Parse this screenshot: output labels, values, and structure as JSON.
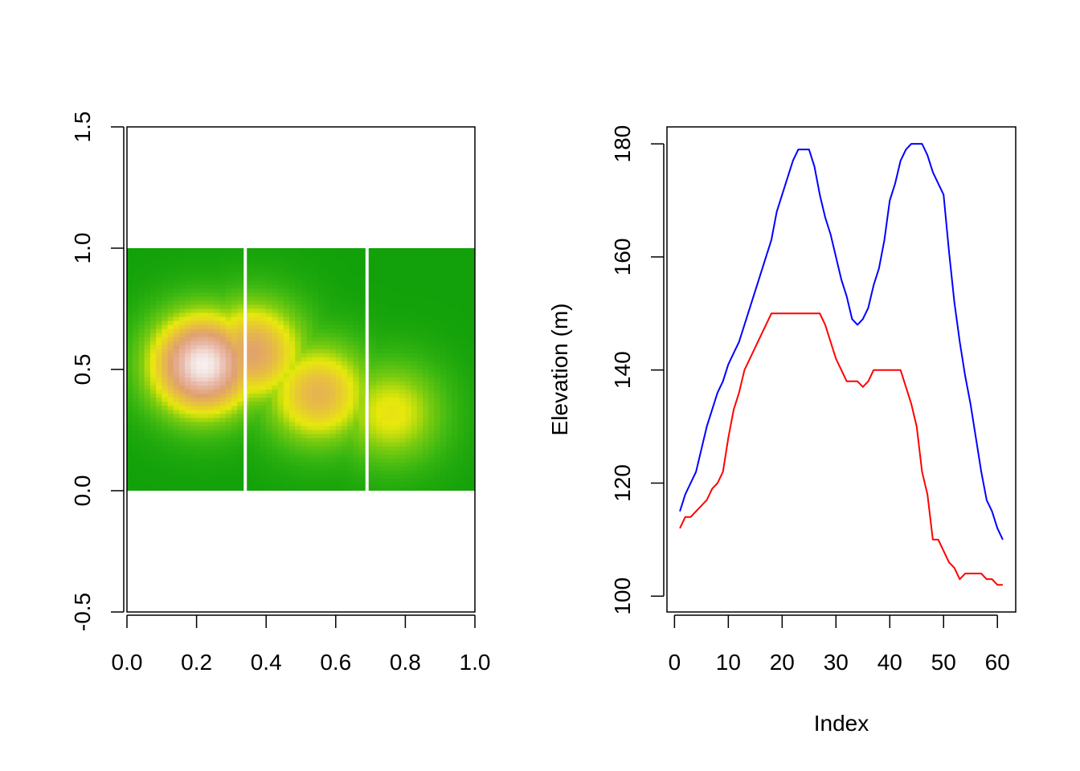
{
  "chart_data": [
    {
      "type": "heatmap",
      "title": "",
      "xlabel": "",
      "ylabel": "",
      "xlim": [
        0.0,
        1.0
      ],
      "ylim": [
        -0.5,
        1.5
      ],
      "x_ticks": [
        "0.0",
        "0.2",
        "0.4",
        "0.6",
        "0.8",
        "1.0"
      ],
      "y_ticks": [
        "-0.5",
        "0.0",
        "0.5",
        "1.0",
        "1.5"
      ],
      "grid": false,
      "raster_extent": {
        "x": [
          0.0,
          1.0
        ],
        "y": [
          0.0,
          1.0
        ]
      },
      "colormap": "terrain (green - yellow - tan - white)",
      "colors": [
        "#12a10a",
        "#3cb812",
        "#7ccc10",
        "#e8e80c",
        "#e8c040",
        "#e0a070",
        "#e8b8a8",
        "#f6f0f0"
      ],
      "peaks": [
        {
          "x": 0.22,
          "y": 0.52,
          "level": 1.0
        },
        {
          "x": 0.36,
          "y": 0.57,
          "level": 0.7
        },
        {
          "x": 0.55,
          "y": 0.4,
          "level": 0.62
        },
        {
          "x": 0.76,
          "y": 0.32,
          "level": 0.45
        }
      ],
      "transect_lines": [
        {
          "x": 0.34,
          "color": "#ffffff"
        },
        {
          "x": 0.69,
          "color": "#ffffff"
        }
      ]
    },
    {
      "type": "line",
      "title": "",
      "xlabel": "Index",
      "ylabel": "Elevation (m)",
      "xlim": [
        1,
        61
      ],
      "ylim": [
        100,
        180
      ],
      "x_ticks": [
        "0",
        "10",
        "20",
        "30",
        "40",
        "50",
        "60"
      ],
      "y_ticks": [
        "100",
        "120",
        "140",
        "160",
        "180"
      ],
      "grid": false,
      "x": [
        1,
        2,
        3,
        4,
        5,
        6,
        7,
        8,
        9,
        10,
        11,
        12,
        13,
        14,
        15,
        16,
        17,
        18,
        19,
        20,
        21,
        22,
        23,
        24,
        25,
        26,
        27,
        28,
        29,
        30,
        31,
        32,
        33,
        34,
        35,
        36,
        37,
        38,
        39,
        40,
        41,
        42,
        43,
        44,
        45,
        46,
        47,
        48,
        49,
        50,
        51,
        52,
        53,
        54,
        55,
        56,
        57,
        58,
        59,
        60,
        61
      ],
      "series": [
        {
          "color": "#0000ff",
          "values": [
            115,
            118,
            120,
            122,
            126,
            130,
            133,
            136,
            138,
            141,
            143,
            145,
            148,
            151,
            154,
            157,
            160,
            163,
            168,
            171,
            174,
            177,
            179,
            179,
            179,
            176,
            171,
            167,
            164,
            160,
            156,
            153,
            149,
            148,
            149,
            151,
            155,
            158,
            163,
            170,
            173,
            177,
            179,
            180,
            180,
            180,
            178,
            175,
            173,
            171,
            161,
            152,
            145,
            139,
            134,
            128,
            122,
            117,
            115,
            112,
            110
          ]
        },
        {
          "color": "#ff0000",
          "values": [
            112,
            114,
            114,
            115,
            116,
            117,
            119,
            120,
            122,
            128,
            133,
            136,
            140,
            142,
            144,
            146,
            148,
            150,
            150,
            150,
            150,
            150,
            150,
            150,
            150,
            150,
            150,
            148,
            145,
            142,
            140,
            138,
            138,
            138,
            137,
            138,
            140,
            140,
            140,
            140,
            140,
            140,
            137,
            134,
            130,
            122,
            118,
            110,
            110,
            108,
            106,
            105,
            103,
            104,
            104,
            104,
            104,
            103,
            103,
            102,
            102
          ]
        }
      ]
    }
  ]
}
